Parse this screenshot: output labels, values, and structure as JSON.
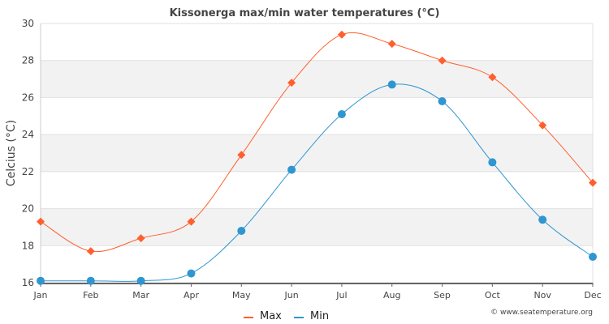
{
  "chart_data": {
    "type": "line",
    "title": "Kissonerga max/min water temperatures (°C)",
    "xlabel": "",
    "ylabel": "Celcius (°C)",
    "categories": [
      "Jan",
      "Feb",
      "Mar",
      "Apr",
      "May",
      "Jun",
      "Jul",
      "Aug",
      "Sep",
      "Oct",
      "Nov",
      "Dec"
    ],
    "ylim": [
      16,
      30
    ],
    "yticks": [
      16,
      18,
      20,
      22,
      24,
      26,
      28,
      30
    ],
    "grid": true,
    "legend_position": "bottom-center",
    "series": [
      {
        "name": "Max",
        "color": "#ff5f2e",
        "marker": "diamond",
        "values": [
          19.3,
          17.7,
          18.4,
          19.3,
          22.9,
          26.8,
          29.4,
          28.9,
          28.0,
          27.1,
          24.5,
          21.4
        ]
      },
      {
        "name": "Min",
        "color": "#2f96d0",
        "marker": "circle",
        "values": [
          16.1,
          16.1,
          16.1,
          16.5,
          18.8,
          22.1,
          25.1,
          26.7,
          25.8,
          22.5,
          19.4,
          17.4
        ]
      }
    ],
    "annotation": "© www.seatemperature.org"
  }
}
